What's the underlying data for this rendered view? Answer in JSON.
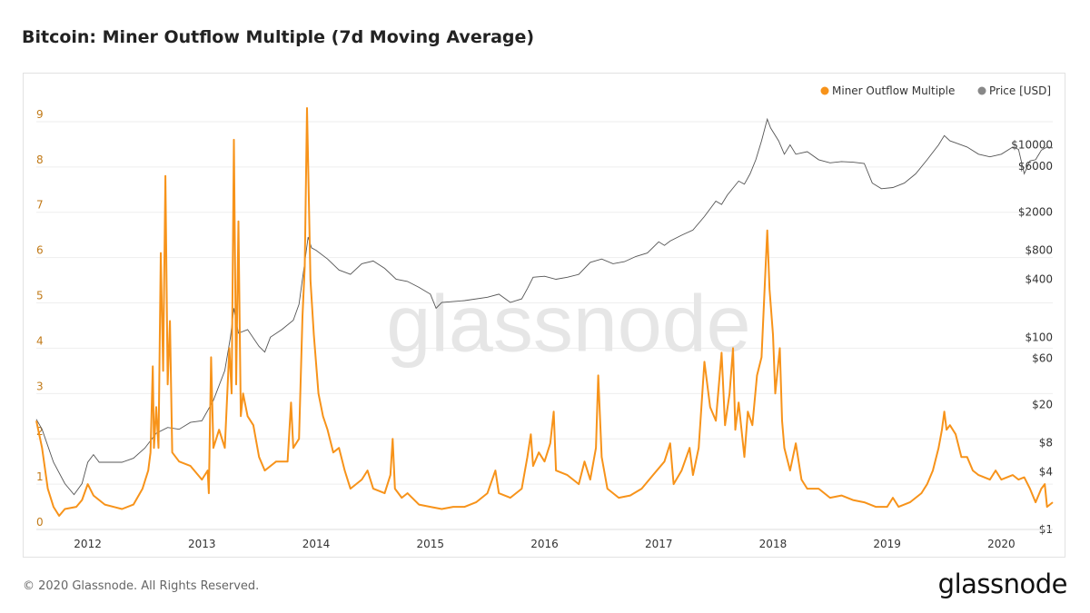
{
  "header": {
    "title": "Bitcoin: Miner Outflow Multiple (7d Moving Average)"
  },
  "footer": {
    "copyright": "© 2020 Glassnode. All Rights Reserved.",
    "logo_text": "glassnode"
  },
  "watermark": "glassnode",
  "colors": {
    "multiple": "#f7931a",
    "price": "#555555",
    "grid": "#eeeeee",
    "left_ticks": "#c17a18",
    "right_ticks": "#333333"
  },
  "chart_data": {
    "type": "line",
    "title": "Bitcoin: Miner Outflow Multiple (7d Moving Average)",
    "legend_position": "top-right",
    "x_ticks": [
      "2012",
      "2013",
      "2014",
      "2015",
      "2016",
      "2017",
      "2018",
      "2019",
      "2020"
    ],
    "x_range": [
      2011.55,
      2020.45
    ],
    "y_left": {
      "range": [
        0,
        9.5
      ],
      "ticks": [
        "0",
        "1",
        "2",
        "3",
        "4",
        "5",
        "6",
        "7",
        "8",
        "9"
      ]
    },
    "y_right": {
      "scale": "log",
      "range": [
        1,
        30000
      ],
      "ticks": [
        "$1",
        "$4",
        "$8",
        "$20",
        "$60",
        "$100",
        "$400",
        "$800",
        "$2000",
        "$6000",
        "$10000"
      ]
    },
    "series": [
      {
        "name": "Miner Outflow Multiple",
        "axis": "left",
        "points": [
          [
            2011.55,
            2.4
          ],
          [
            2011.6,
            1.8
          ],
          [
            2011.65,
            0.9
          ],
          [
            2011.7,
            0.5
          ],
          [
            2011.75,
            0.3
          ],
          [
            2011.8,
            0.45
          ],
          [
            2011.9,
            0.5
          ],
          [
            2011.95,
            0.65
          ],
          [
            2012.0,
            1.0
          ],
          [
            2012.05,
            0.75
          ],
          [
            2012.15,
            0.55
          ],
          [
            2012.3,
            0.45
          ],
          [
            2012.4,
            0.55
          ],
          [
            2012.48,
            0.9
          ],
          [
            2012.53,
            1.3
          ],
          [
            2012.55,
            1.7
          ],
          [
            2012.57,
            3.6
          ],
          [
            2012.58,
            1.8
          ],
          [
            2012.6,
            2.7
          ],
          [
            2012.62,
            1.8
          ],
          [
            2012.64,
            6.1
          ],
          [
            2012.66,
            3.5
          ],
          [
            2012.68,
            7.8
          ],
          [
            2012.7,
            3.2
          ],
          [
            2012.72,
            4.6
          ],
          [
            2012.74,
            1.7
          ],
          [
            2012.8,
            1.5
          ],
          [
            2012.9,
            1.4
          ],
          [
            2013.0,
            1.1
          ],
          [
            2013.05,
            1.3
          ],
          [
            2013.06,
            0.8
          ],
          [
            2013.08,
            3.8
          ],
          [
            2013.1,
            1.8
          ],
          [
            2013.15,
            2.2
          ],
          [
            2013.2,
            1.8
          ],
          [
            2013.24,
            4.0
          ],
          [
            2013.26,
            3.0
          ],
          [
            2013.28,
            8.6
          ],
          [
            2013.3,
            3.2
          ],
          [
            2013.32,
            6.8
          ],
          [
            2013.34,
            2.5
          ],
          [
            2013.36,
            3.0
          ],
          [
            2013.4,
            2.5
          ],
          [
            2013.45,
            2.3
          ],
          [
            2013.5,
            1.6
          ],
          [
            2013.55,
            1.3
          ],
          [
            2013.65,
            1.5
          ],
          [
            2013.75,
            1.5
          ],
          [
            2013.78,
            2.8
          ],
          [
            2013.8,
            1.8
          ],
          [
            2013.85,
            2.0
          ],
          [
            2013.88,
            4.7
          ],
          [
            2013.9,
            5.8
          ],
          [
            2013.92,
            9.3
          ],
          [
            2013.95,
            5.5
          ],
          [
            2013.98,
            4.3
          ],
          [
            2014.02,
            3.0
          ],
          [
            2014.06,
            2.5
          ],
          [
            2014.1,
            2.2
          ],
          [
            2014.15,
            1.7
          ],
          [
            2014.2,
            1.8
          ],
          [
            2014.25,
            1.3
          ],
          [
            2014.3,
            0.9
          ],
          [
            2014.4,
            1.1
          ],
          [
            2014.45,
            1.3
          ],
          [
            2014.5,
            0.9
          ],
          [
            2014.6,
            0.8
          ],
          [
            2014.65,
            1.2
          ],
          [
            2014.67,
            2.0
          ],
          [
            2014.69,
            0.9
          ],
          [
            2014.75,
            0.7
          ],
          [
            2014.8,
            0.8
          ],
          [
            2014.9,
            0.55
          ],
          [
            2015.0,
            0.5
          ],
          [
            2015.1,
            0.45
          ],
          [
            2015.2,
            0.5
          ],
          [
            2015.3,
            0.5
          ],
          [
            2015.4,
            0.6
          ],
          [
            2015.5,
            0.8
          ],
          [
            2015.57,
            1.3
          ],
          [
            2015.6,
            0.8
          ],
          [
            2015.7,
            0.7
          ],
          [
            2015.8,
            0.9
          ],
          [
            2015.85,
            1.6
          ],
          [
            2015.88,
            2.1
          ],
          [
            2015.9,
            1.4
          ],
          [
            2015.95,
            1.7
          ],
          [
            2016.0,
            1.5
          ],
          [
            2016.05,
            1.9
          ],
          [
            2016.08,
            2.6
          ],
          [
            2016.1,
            1.3
          ],
          [
            2016.2,
            1.2
          ],
          [
            2016.3,
            1.0
          ],
          [
            2016.35,
            1.5
          ],
          [
            2016.4,
            1.1
          ],
          [
            2016.45,
            1.8
          ],
          [
            2016.47,
            3.4
          ],
          [
            2016.5,
            1.6
          ],
          [
            2016.55,
            0.9
          ],
          [
            2016.65,
            0.7
          ],
          [
            2016.75,
            0.75
          ],
          [
            2016.85,
            0.9
          ],
          [
            2016.95,
            1.2
          ],
          [
            2017.05,
            1.5
          ],
          [
            2017.1,
            1.9
          ],
          [
            2017.13,
            1.0
          ],
          [
            2017.2,
            1.3
          ],
          [
            2017.27,
            1.8
          ],
          [
            2017.3,
            1.2
          ],
          [
            2017.35,
            1.8
          ],
          [
            2017.4,
            3.7
          ],
          [
            2017.45,
            2.7
          ],
          [
            2017.5,
            2.4
          ],
          [
            2017.55,
            3.9
          ],
          [
            2017.58,
            2.3
          ],
          [
            2017.62,
            3.0
          ],
          [
            2017.65,
            4.0
          ],
          [
            2017.67,
            2.2
          ],
          [
            2017.7,
            2.8
          ],
          [
            2017.75,
            1.6
          ],
          [
            2017.78,
            2.6
          ],
          [
            2017.82,
            2.3
          ],
          [
            2017.86,
            3.4
          ],
          [
            2017.9,
            3.8
          ],
          [
            2017.93,
            5.5
          ],
          [
            2017.95,
            6.6
          ],
          [
            2017.97,
            5.3
          ],
          [
            2018.0,
            4.3
          ],
          [
            2018.02,
            3.0
          ],
          [
            2018.06,
            4.0
          ],
          [
            2018.08,
            2.4
          ],
          [
            2018.1,
            1.8
          ],
          [
            2018.15,
            1.3
          ],
          [
            2018.2,
            1.9
          ],
          [
            2018.25,
            1.1
          ],
          [
            2018.3,
            0.9
          ],
          [
            2018.4,
            0.9
          ],
          [
            2018.5,
            0.7
          ],
          [
            2018.6,
            0.75
          ],
          [
            2018.7,
            0.65
          ],
          [
            2018.8,
            0.6
          ],
          [
            2018.9,
            0.5
          ],
          [
            2019.0,
            0.5
          ],
          [
            2019.05,
            0.7
          ],
          [
            2019.1,
            0.5
          ],
          [
            2019.2,
            0.6
          ],
          [
            2019.3,
            0.8
          ],
          [
            2019.35,
            1.0
          ],
          [
            2019.4,
            1.3
          ],
          [
            2019.45,
            1.8
          ],
          [
            2019.48,
            2.2
          ],
          [
            2019.5,
            2.6
          ],
          [
            2019.52,
            2.2
          ],
          [
            2019.55,
            2.3
          ],
          [
            2019.6,
            2.1
          ],
          [
            2019.65,
            1.6
          ],
          [
            2019.7,
            1.6
          ],
          [
            2019.75,
            1.3
          ],
          [
            2019.8,
            1.2
          ],
          [
            2019.9,
            1.1
          ],
          [
            2019.95,
            1.3
          ],
          [
            2020.0,
            1.1
          ],
          [
            2020.1,
            1.2
          ],
          [
            2020.15,
            1.1
          ],
          [
            2020.2,
            1.15
          ],
          [
            2020.25,
            0.9
          ],
          [
            2020.3,
            0.6
          ],
          [
            2020.35,
            0.9
          ],
          [
            2020.38,
            1.0
          ],
          [
            2020.4,
            0.5
          ],
          [
            2020.45,
            0.6
          ]
        ]
      },
      {
        "name": "Price [USD]",
        "axis": "right",
        "points": [
          [
            2011.55,
            14
          ],
          [
            2011.6,
            11
          ],
          [
            2011.7,
            5
          ],
          [
            2011.8,
            3
          ],
          [
            2011.88,
            2.3
          ],
          [
            2011.95,
            3
          ],
          [
            2012.0,
            5
          ],
          [
            2012.05,
            6
          ],
          [
            2012.1,
            5
          ],
          [
            2012.2,
            5
          ],
          [
            2012.3,
            5
          ],
          [
            2012.4,
            5.5
          ],
          [
            2012.5,
            7
          ],
          [
            2012.6,
            10
          ],
          [
            2012.7,
            11.5
          ],
          [
            2012.8,
            11
          ],
          [
            2012.9,
            13
          ],
          [
            2013.0,
            13.5
          ],
          [
            2013.1,
            22
          ],
          [
            2013.2,
            45
          ],
          [
            2013.25,
            100
          ],
          [
            2013.28,
            200
          ],
          [
            2013.32,
            110
          ],
          [
            2013.4,
            120
          ],
          [
            2013.5,
            80
          ],
          [
            2013.55,
            70
          ],
          [
            2013.6,
            100
          ],
          [
            2013.7,
            120
          ],
          [
            2013.8,
            150
          ],
          [
            2013.85,
            220
          ],
          [
            2013.9,
            600
          ],
          [
            2013.93,
            1100
          ],
          [
            2013.96,
            850
          ],
          [
            2014.0,
            800
          ],
          [
            2014.1,
            650
          ],
          [
            2014.2,
            500
          ],
          [
            2014.3,
            450
          ],
          [
            2014.4,
            580
          ],
          [
            2014.5,
            620
          ],
          [
            2014.6,
            520
          ],
          [
            2014.7,
            400
          ],
          [
            2014.8,
            380
          ],
          [
            2014.9,
            330
          ],
          [
            2015.0,
            280
          ],
          [
            2015.05,
            200
          ],
          [
            2015.1,
            230
          ],
          [
            2015.3,
            240
          ],
          [
            2015.5,
            260
          ],
          [
            2015.6,
            280
          ],
          [
            2015.7,
            230
          ],
          [
            2015.8,
            250
          ],
          [
            2015.85,
            320
          ],
          [
            2015.9,
            420
          ],
          [
            2016.0,
            430
          ],
          [
            2016.1,
            400
          ],
          [
            2016.2,
            420
          ],
          [
            2016.3,
            450
          ],
          [
            2016.4,
            600
          ],
          [
            2016.5,
            650
          ],
          [
            2016.6,
            580
          ],
          [
            2016.7,
            610
          ],
          [
            2016.8,
            690
          ],
          [
            2016.9,
            750
          ],
          [
            2017.0,
            980
          ],
          [
            2017.05,
            900
          ],
          [
            2017.1,
            1000
          ],
          [
            2017.2,
            1150
          ],
          [
            2017.3,
            1300
          ],
          [
            2017.4,
            1800
          ],
          [
            2017.5,
            2600
          ],
          [
            2017.55,
            2400
          ],
          [
            2017.6,
            3000
          ],
          [
            2017.7,
            4200
          ],
          [
            2017.75,
            3900
          ],
          [
            2017.8,
            5000
          ],
          [
            2017.85,
            7000
          ],
          [
            2017.9,
            11000
          ],
          [
            2017.95,
            18500
          ],
          [
            2017.98,
            15000
          ],
          [
            2018.05,
            11000
          ],
          [
            2018.1,
            8000
          ],
          [
            2018.15,
            10000
          ],
          [
            2018.2,
            8000
          ],
          [
            2018.3,
            8500
          ],
          [
            2018.4,
            7000
          ],
          [
            2018.5,
            6500
          ],
          [
            2018.6,
            6700
          ],
          [
            2018.7,
            6600
          ],
          [
            2018.8,
            6400
          ],
          [
            2018.87,
            4000
          ],
          [
            2018.95,
            3500
          ],
          [
            2019.05,
            3600
          ],
          [
            2019.15,
            4000
          ],
          [
            2019.25,
            5000
          ],
          [
            2019.35,
            7000
          ],
          [
            2019.45,
            10000
          ],
          [
            2019.5,
            12500
          ],
          [
            2019.55,
            11000
          ],
          [
            2019.6,
            10500
          ],
          [
            2019.7,
            9500
          ],
          [
            2019.8,
            8000
          ],
          [
            2019.9,
            7500
          ],
          [
            2020.0,
            8000
          ],
          [
            2020.1,
            9500
          ],
          [
            2020.15,
            9000
          ],
          [
            2020.2,
            5000
          ],
          [
            2020.25,
            6800
          ],
          [
            2020.3,
            7000
          ],
          [
            2020.35,
            8800
          ],
          [
            2020.4,
            9500
          ],
          [
            2020.45,
            9300
          ]
        ]
      }
    ]
  }
}
